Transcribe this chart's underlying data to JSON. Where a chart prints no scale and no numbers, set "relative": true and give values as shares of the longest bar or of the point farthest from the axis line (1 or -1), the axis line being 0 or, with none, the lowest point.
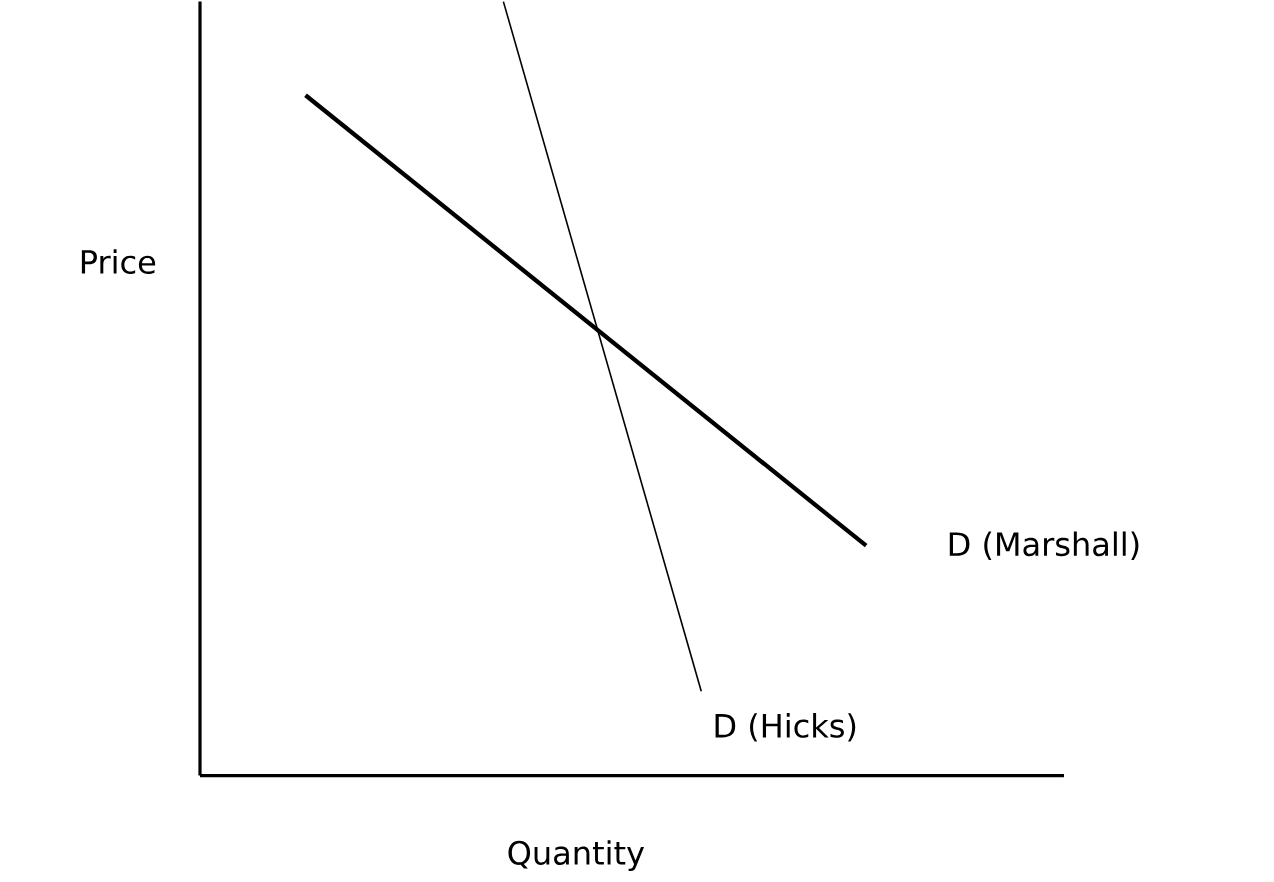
{
  "chart_data": {
    "type": "line",
    "relative": true,
    "xlabel": "Quantity",
    "ylabel": "Price",
    "categories": [
      null,
      null,
      null,
      null,
      null,
      null,
      null,
      null,
      null,
      null,
      null,
      null,
      null,
      null,
      null,
      null,
      null,
      null
    ],
    "series": [
      {
        "name": "D (Marshall)",
        "color": "#000000",
        "values": [
          0.879,
          null,
          null,
          null,
          null,
          null,
          null,
          null,
          null,
          null,
          null,
          null,
          null,
          null,
          null,
          null,
          null,
          0.297
        ]
      },
      {
        "name": "D (Hicks)",
        "color": "#000000",
        "values": [
          null,
          null,
          null,
          null,
          null,
          null,
          1,
          null,
          null,
          null,
          null,
          null,
          0.109,
          null,
          null,
          null,
          null,
          null
        ]
      }
    ]
  }
}
